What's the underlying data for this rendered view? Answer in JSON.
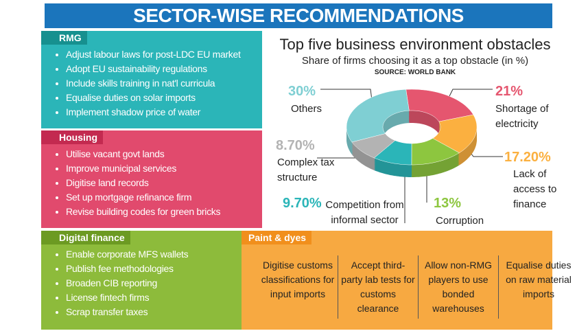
{
  "header": {
    "title": "SECTOR-WISE RECOMMENDATIONS"
  },
  "sections": [
    {
      "label": "RMG",
      "items": [
        "Adjust labour laws for post-LDC EU market",
        "Adopt EU sustainability regulations",
        "Include skills training in nat'l curricula",
        "Equalise duties on solar imports",
        "Implement shadow price of water"
      ]
    },
    {
      "label": "Housing",
      "items": [
        "Utilise vacant govt lands",
        "Improve municipal services",
        "Digitise land records",
        "Set up mortgage refinance firm",
        "Revise building codes for green bricks"
      ]
    },
    {
      "label": "Digital finance",
      "items": [
        "Enable corporate MFS wallets",
        "Publish fee methodologies",
        "Broaden CIB reporting",
        "License fintech firms",
        "Scrap transfer taxes"
      ]
    }
  ],
  "paint_dyes": {
    "label": "Paint & dyes",
    "items": [
      "Digitise customs classifications for input imports",
      "Accept third-party lab tests for customs clearance",
      "Allow non-RMG players to use bonded warehouses",
      "Equalise duties on raw material imports"
    ]
  },
  "chart_data": {
    "type": "pie",
    "title": "Top five business environment obstacles",
    "subtitle": "Share of firms choosing it as a top obstacle (in %)",
    "source": "SOURCE: WORLD BANK",
    "categories": [
      "Shortage of electricity",
      "Lack of access to finance",
      "Corruption",
      "Competition from informal sector",
      "Complex tax structure",
      "Others"
    ],
    "values": [
      21,
      17.2,
      13,
      9.7,
      8.7,
      30
    ],
    "value_labels": [
      "21%",
      "17.20%",
      "13%",
      "9.70%",
      "8.70%",
      "30%"
    ],
    "colors": [
      "#e5566f",
      "#fbb040",
      "#8dc63f",
      "#2bb5b8",
      "#b3b3b3",
      "#7fcfd3"
    ]
  }
}
